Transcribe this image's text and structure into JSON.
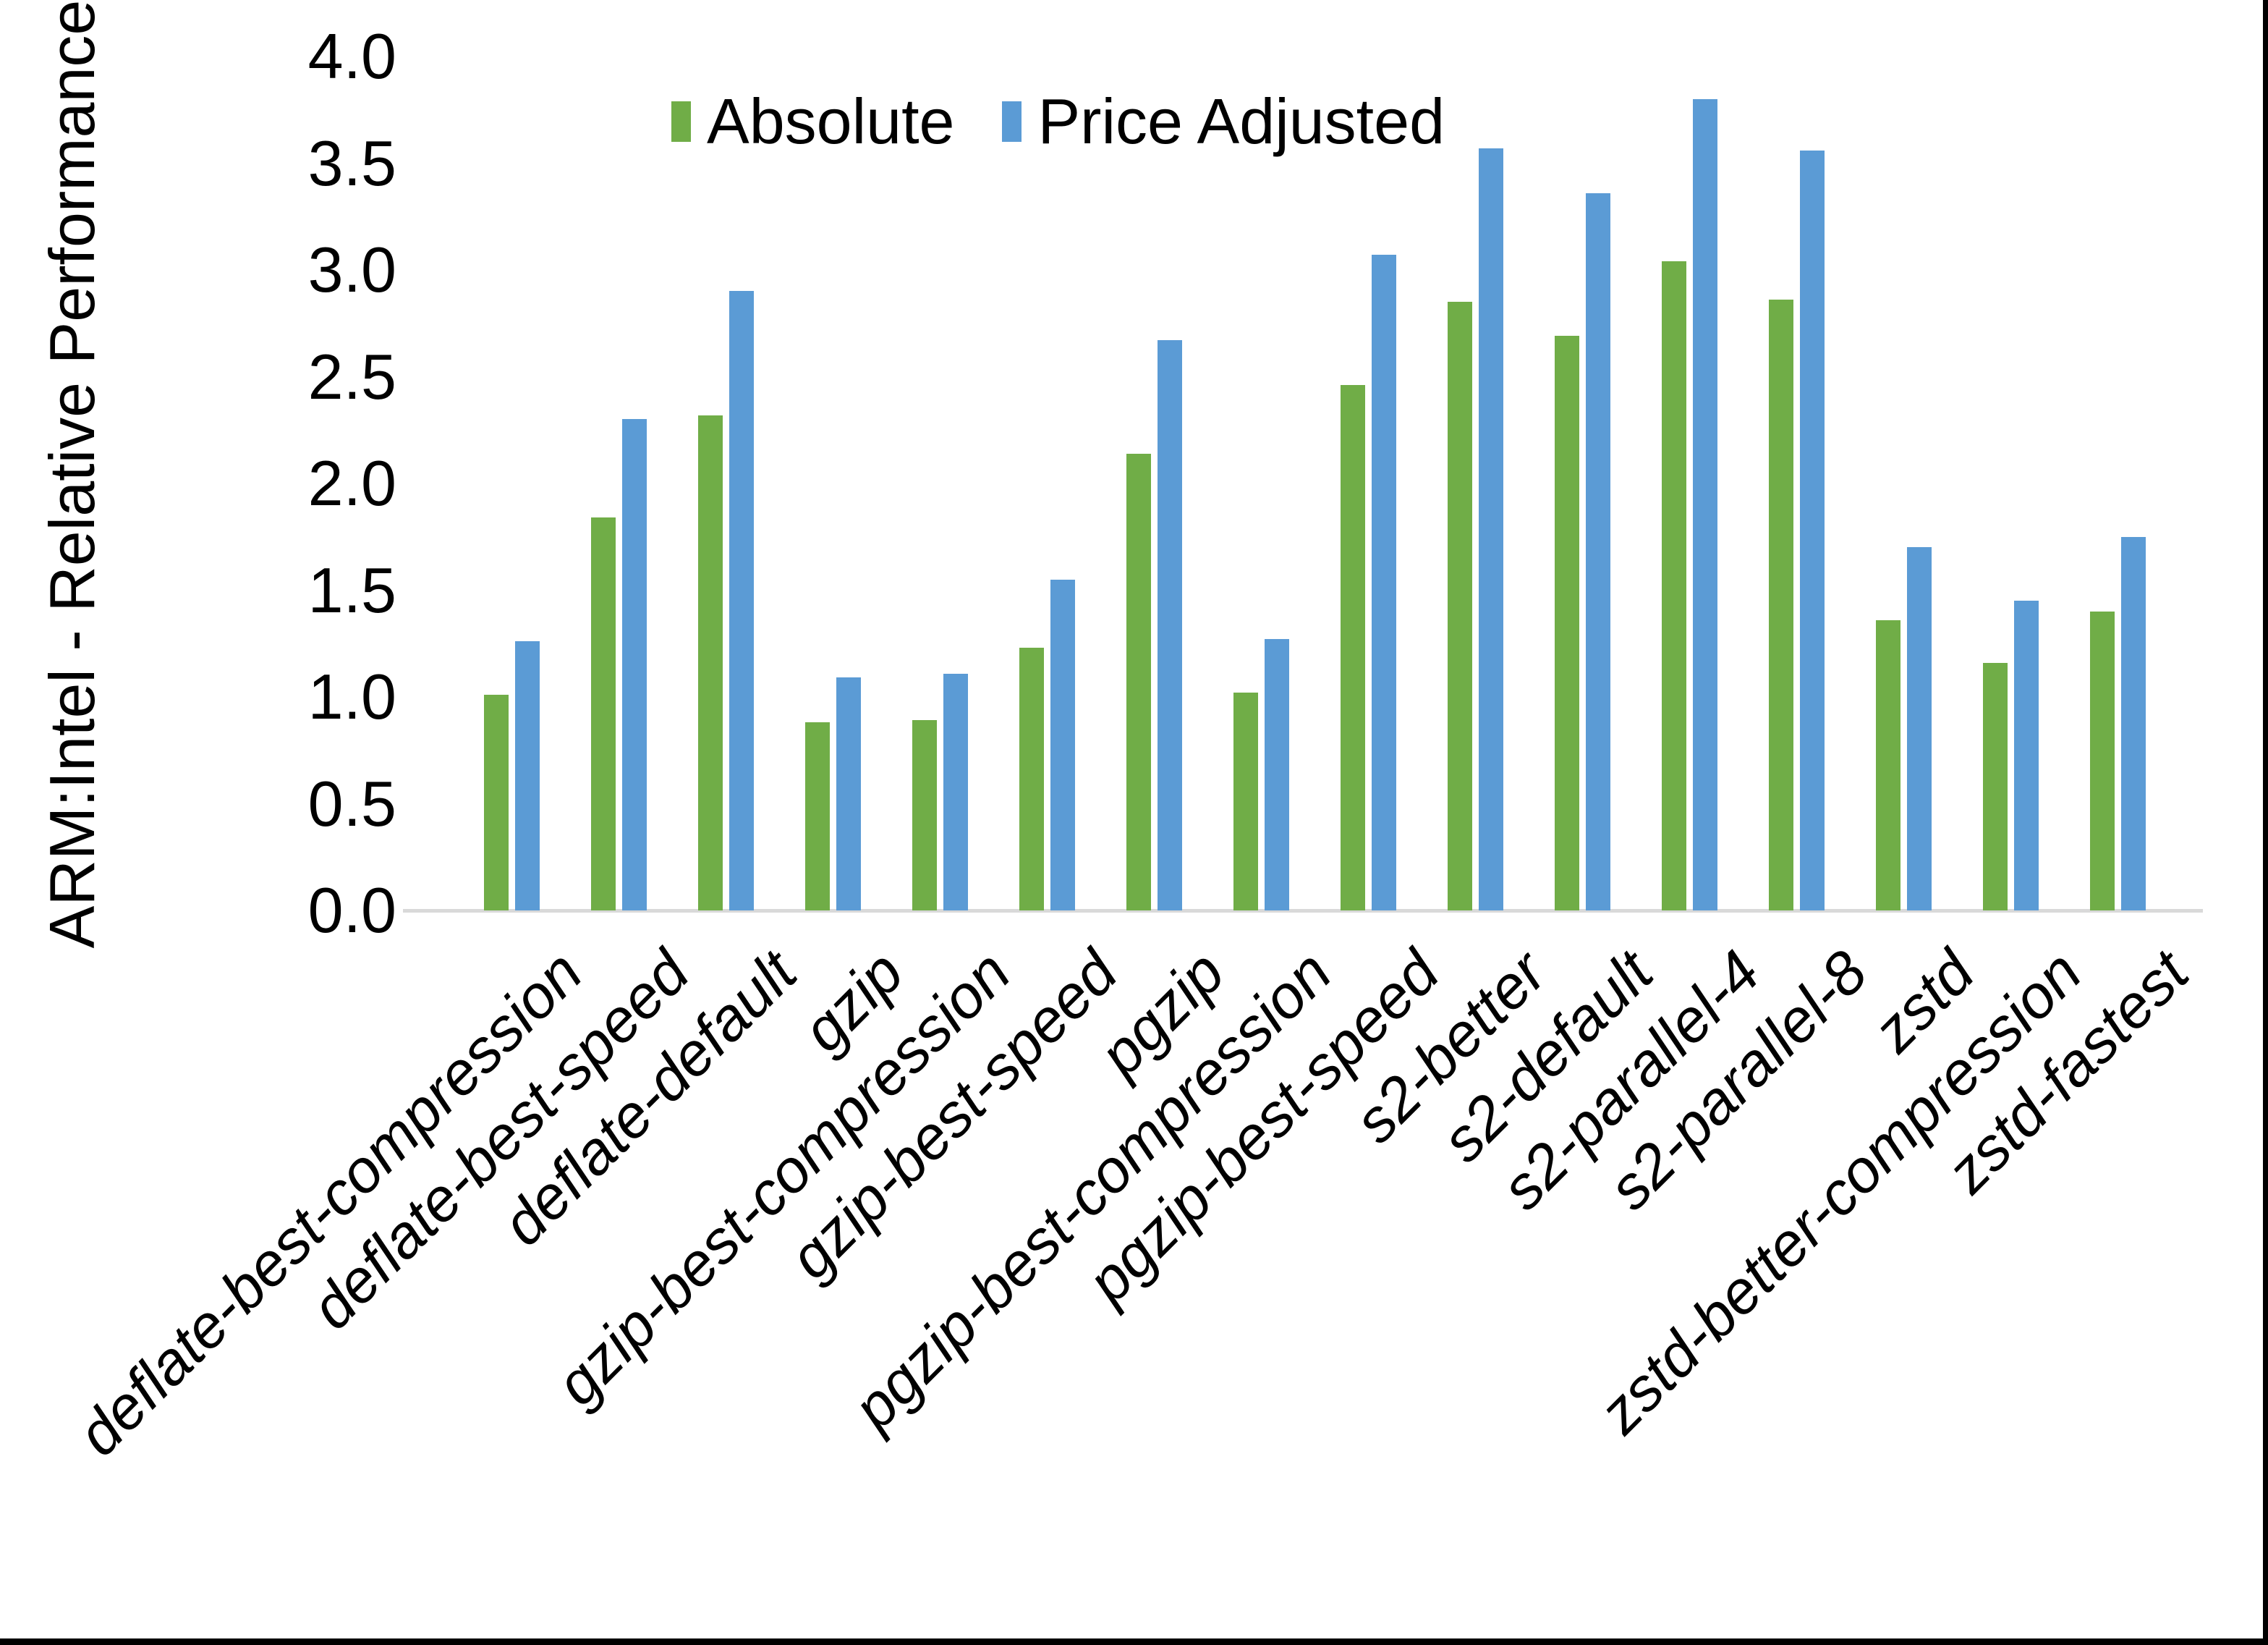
{
  "chart_data": {
    "type": "bar",
    "title": "",
    "ylabel": "ARM:Intel - Relative Performance",
    "xlabel": "",
    "ylim": [
      0.0,
      4.0
    ],
    "ytick_labels": [
      "0.0",
      "0.5",
      "1.0",
      "1.5",
      "2.0",
      "2.5",
      "3.0",
      "3.5",
      "4.0"
    ],
    "grid": false,
    "legend_position": "top-center",
    "background_color": "#ffffff",
    "axis_line_color": "#d9d9d9",
    "text_color": "#000000",
    "categories": [
      "deflate-best-compression",
      "deflate-best-speed",
      "deflate-default",
      "gzip",
      "gzip-best-compression",
      "gzip-best-speed",
      "pgzip",
      "pgzip-best-compression",
      "pgzip-best-speed",
      "s2-better",
      "s2-default",
      "s2-parallel-4",
      "s2-parallel-8",
      "zstd",
      "zstd-better-compression",
      "zstd-fastest"
    ],
    "series": [
      {
        "name": "Absolute",
        "color": "#70ad47",
        "values": [
          1.01,
          1.84,
          2.32,
          0.88,
          0.89,
          1.23,
          2.14,
          1.02,
          2.46,
          2.85,
          2.69,
          3.04,
          2.86,
          1.36,
          1.16,
          1.4
        ]
      },
      {
        "name": "Price Adjusted",
        "color": "#5b9bd5",
        "values": [
          1.26,
          2.3,
          2.9,
          1.09,
          1.11,
          1.55,
          2.67,
          1.27,
          3.07,
          3.57,
          3.36,
          3.8,
          3.56,
          1.7,
          1.45,
          1.75
        ]
      }
    ]
  },
  "frame": {
    "border_color": "#000000"
  }
}
